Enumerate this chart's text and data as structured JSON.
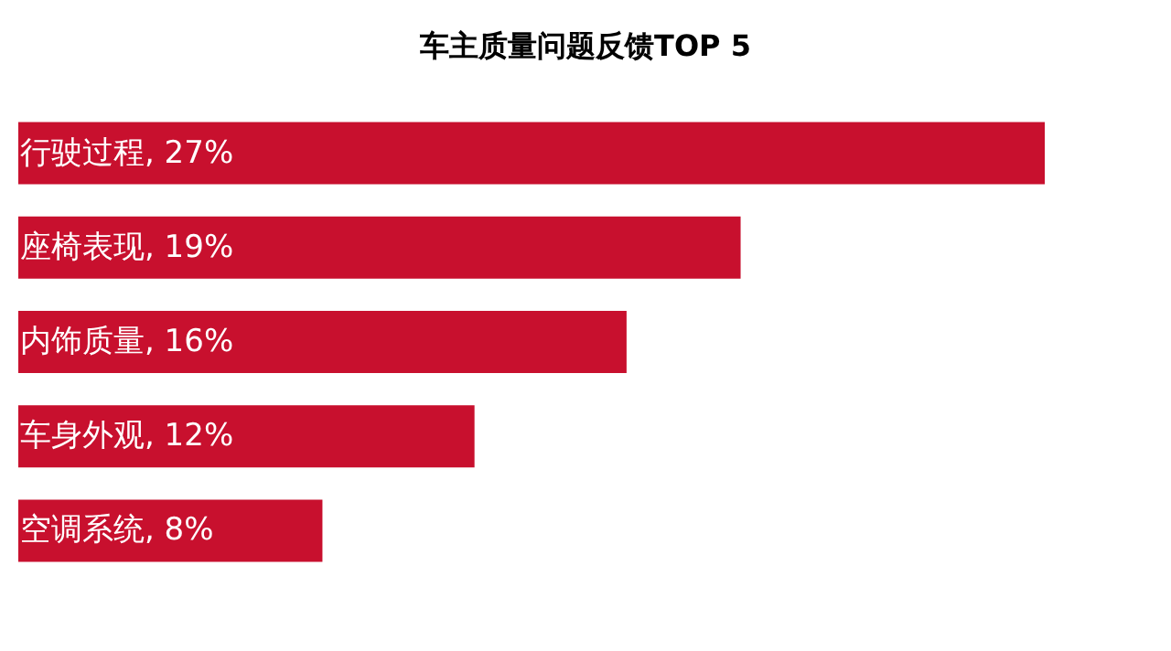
{
  "chart_data": {
    "type": "bar",
    "orientation": "horizontal",
    "title": "车主质量问题反馈TOP 5",
    "categories": [
      null,
      null,
      null,
      null,
      null
    ],
    "values": [
      27,
      19,
      16,
      12,
      8
    ],
    "value_labels": [
      "行驶过程, 27%",
      "座椅表现, 19%",
      "内饰质量, 16%",
      "车身外观, 12%",
      "空调系统, 8%"
    ],
    "color": "#c8102e",
    "tick_labels": false
  }
}
